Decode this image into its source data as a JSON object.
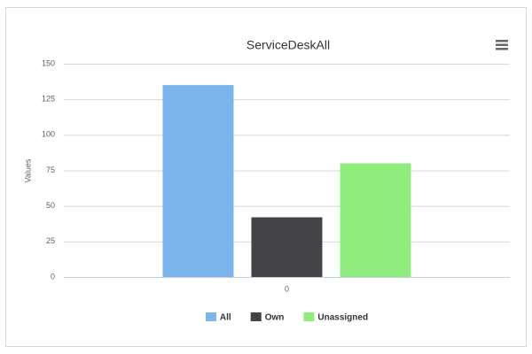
{
  "chart_data": {
    "type": "bar",
    "title": "ServiceDeskAll",
    "y_label": "Values",
    "categories": [
      "0"
    ],
    "series": [
      {
        "name": "All",
        "color": "#7cb5ec",
        "values": [
          135
        ]
      },
      {
        "name": "Own",
        "color": "#434348",
        "values": [
          42
        ]
      },
      {
        "name": "Unassigned",
        "color": "#90ed7d",
        "values": [
          80
        ]
      }
    ],
    "ylim": [
      0,
      150
    ],
    "yticks": [
      0,
      25,
      50,
      75,
      100,
      125,
      150
    ],
    "grid": true,
    "legend": "bottom"
  }
}
